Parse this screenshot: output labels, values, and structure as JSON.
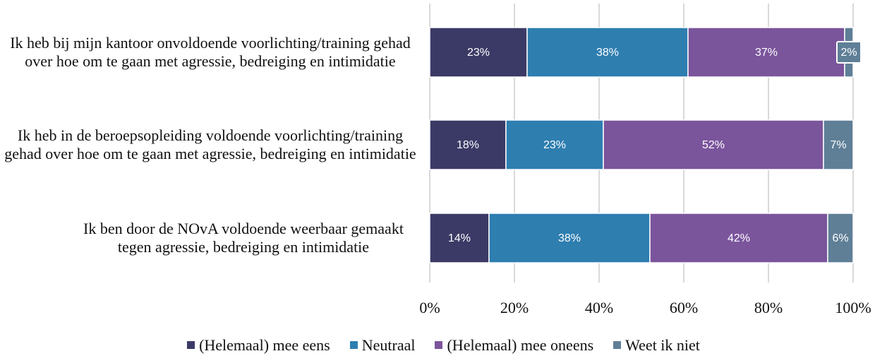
{
  "chart_data": {
    "type": "stacked_bar_horizontal",
    "categories": [
      "Ik heb bij mijn kantoor onvoldoende voorlichting/training gehad over hoe om te gaan met agressie, bedreiging en intimidatie",
      "Ik heb in de beroepsopleiding voldoende voorlichting/training gehad over hoe om te gaan met agressie, bedreiging en intimidatie",
      "Ik ben door de NOvA voldoende weerbaar gemaakt tegen agressie, bedreiging en intimidatie"
    ],
    "series": [
      {
        "name": "(Helemaal) mee eens",
        "color": "#3b3a66",
        "values": [
          23,
          18,
          14
        ],
        "value_labels": [
          "23%",
          "18%",
          "14%"
        ]
      },
      {
        "name": "Neutraal",
        "color": "#2e7eb0",
        "values": [
          38,
          23,
          38
        ],
        "value_labels": [
          "38%",
          "23%",
          "38%"
        ]
      },
      {
        "name": "(Helemaal) mee oneens",
        "color": "#7b559c",
        "values": [
          37,
          52,
          42
        ],
        "value_labels": [
          "37%",
          "52%",
          "42%"
        ]
      },
      {
        "name": "Weet ik niet",
        "color": "#5f7f97",
        "values": [
          2,
          7,
          6
        ],
        "value_labels": [
          "2%",
          "7%",
          "6%"
        ]
      }
    ],
    "xlim": [
      0,
      100
    ],
    "xticks": [
      {
        "value": 0,
        "label": "0%"
      },
      {
        "value": 20,
        "label": "20%"
      },
      {
        "value": 40,
        "label": "40%"
      },
      {
        "value": 60,
        "label": "60%"
      },
      {
        "value": 80,
        "label": "80%"
      },
      {
        "value": 100,
        "label": "100%"
      }
    ],
    "grid": true,
    "legend": "bottom"
  }
}
